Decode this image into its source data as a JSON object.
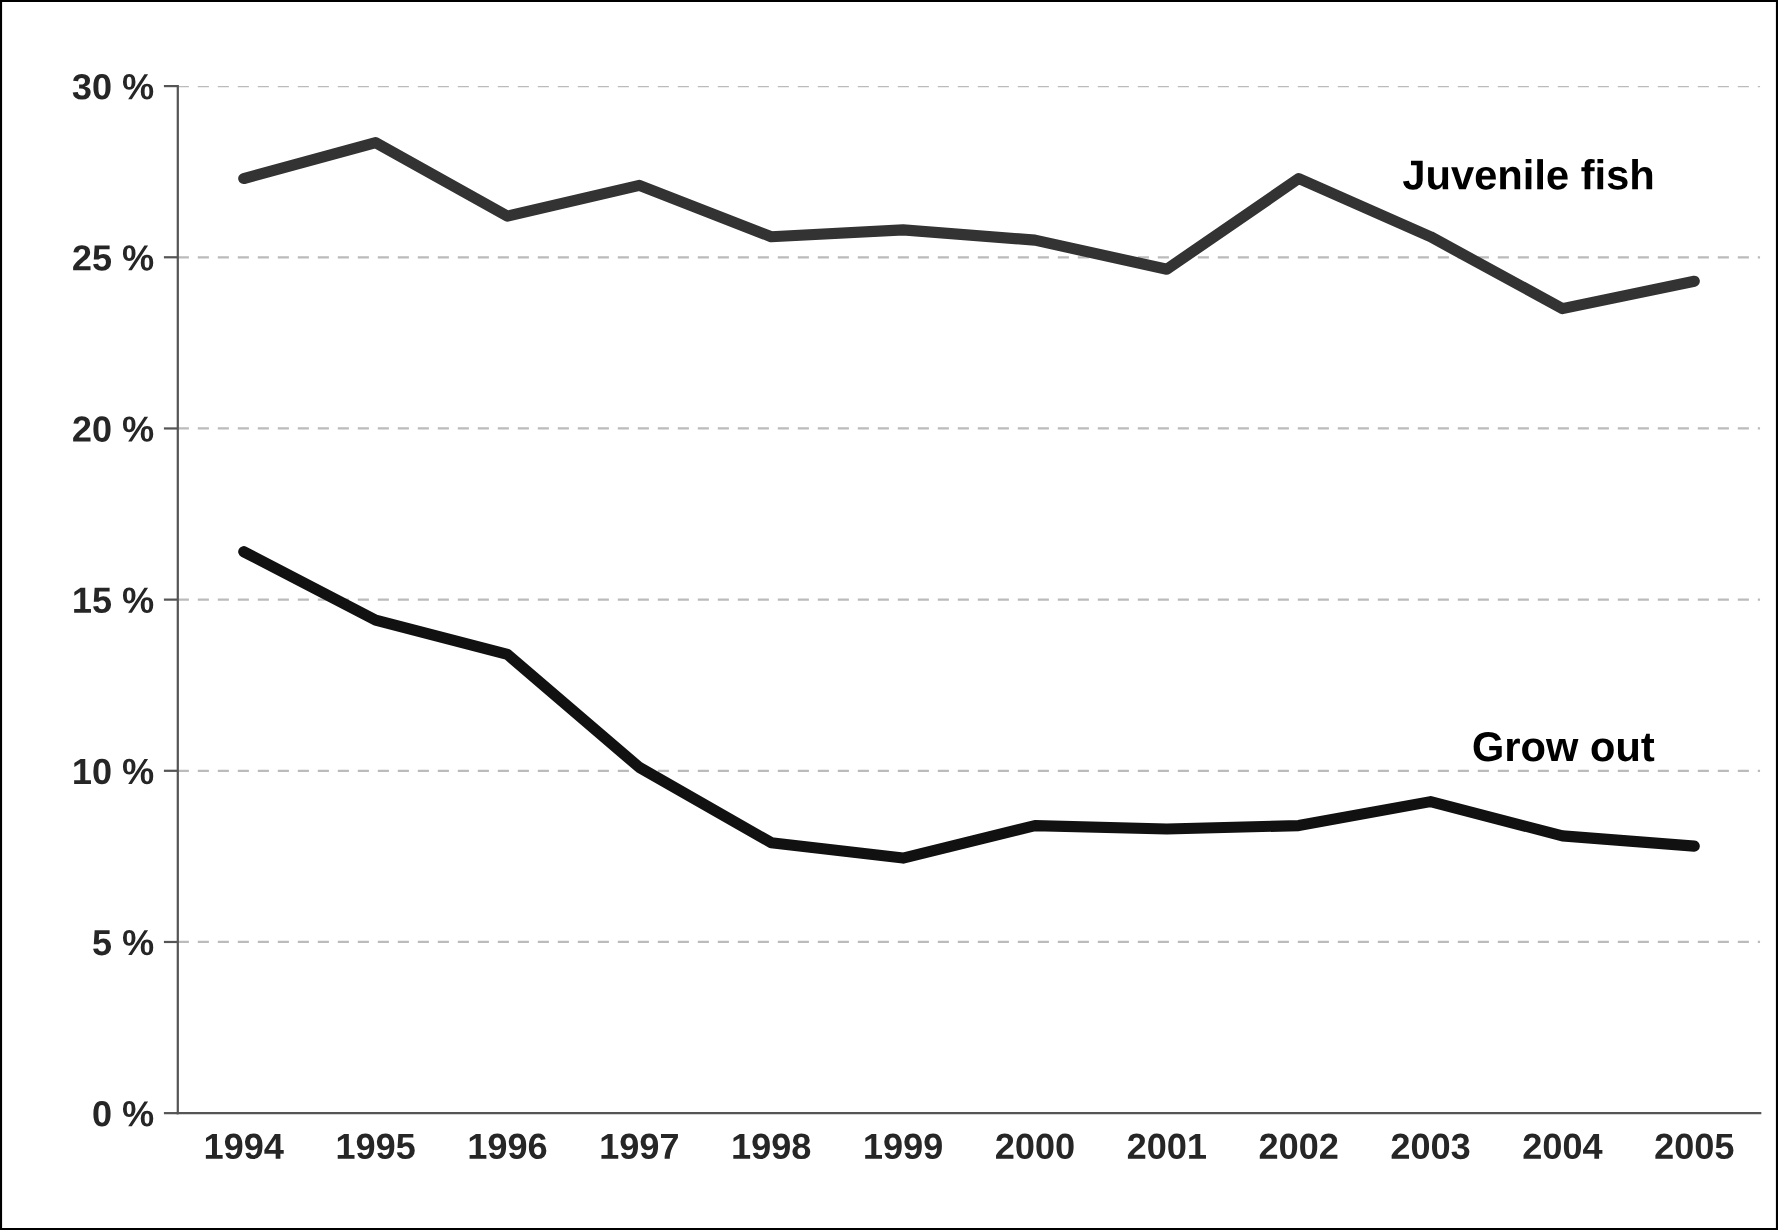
{
  "chart_data": {
    "type": "line",
    "categories": [
      "1994",
      "1995",
      "1996",
      "1997",
      "1998",
      "1999",
      "2000",
      "2001",
      "2002",
      "2003",
      "2004",
      "2005"
    ],
    "series": [
      {
        "name": "Juvenile fish",
        "color": "#333333",
        "values": [
          27.3,
          28.35,
          26.2,
          27.1,
          25.6,
          25.8,
          25.5,
          24.65,
          27.3,
          25.6,
          23.5,
          24.3
        ]
      },
      {
        "name": "Grow out",
        "color": "#111111",
        "values": [
          16.4,
          14.4,
          13.4,
          10.1,
          7.9,
          7.45,
          8.4,
          8.3,
          8.4,
          9.1,
          8.1,
          7.8
        ]
      }
    ],
    "ylim": [
      0,
      30
    ],
    "yticks": [
      {
        "value": 0,
        "label": "0 %"
      },
      {
        "value": 5,
        "label": "5 %"
      },
      {
        "value": 10,
        "label": "10 %"
      },
      {
        "value": 15,
        "label": "15 %"
      },
      {
        "value": 20,
        "label": "20 %"
      },
      {
        "value": 25,
        "label": "25 %"
      },
      {
        "value": 30,
        "label": "30 %"
      }
    ],
    "grid": "y",
    "marker": "none",
    "line_style": "solid",
    "legend": false
  }
}
